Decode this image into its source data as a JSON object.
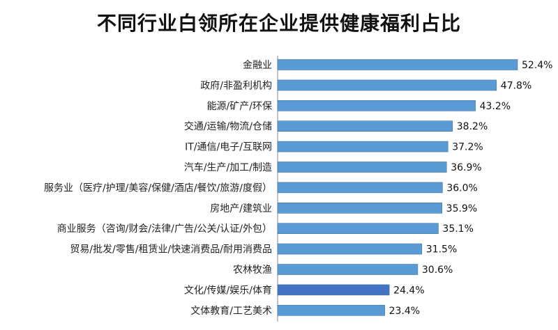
{
  "chart_data": {
    "type": "bar",
    "orientation": "horizontal",
    "title": "不同行业白领所在企业提供健康福利占比",
    "categories": [
      "金融业",
      "政府/非盈利机构",
      "能源/矿产/环保",
      "交通/运输/物流/仓储",
      "IT/通信/电子/互联网",
      "汽车/生产/加工/制造",
      "服务业（医疗/护理/美容/保健/酒店/餐饮/旅游/度假）",
      "房地产/建筑业",
      "商业服务（咨询/财会/法律/广告/公关/认证/外包）",
      "贸易/批发/零售/租赁业/快速消费品/耐用消费品",
      "农林牧渔",
      "文化/传媒/娱乐/体育",
      "文体教育/工艺美术"
    ],
    "values": [
      52.4,
      47.8,
      43.2,
      38.2,
      37.2,
      36.9,
      36.0,
      35.9,
      35.1,
      31.5,
      30.6,
      24.4,
      23.4
    ],
    "value_labels": [
      "52.4%",
      "47.8%",
      "43.2%",
      "38.2%",
      "37.2%",
      "36.9%",
      "36.0%",
      "35.9%",
      "35.1%",
      "31.5%",
      "30.6%",
      "24.4%",
      "23.4%"
    ],
    "highlight_index": 11,
    "xlim": [
      0,
      52.4
    ],
    "grid": false,
    "legend": "none",
    "colors": {
      "bar": "#5b9bd5",
      "bar_highlight": "#4472c4",
      "bar_edge": "#41719c",
      "axis": "#888888"
    }
  }
}
